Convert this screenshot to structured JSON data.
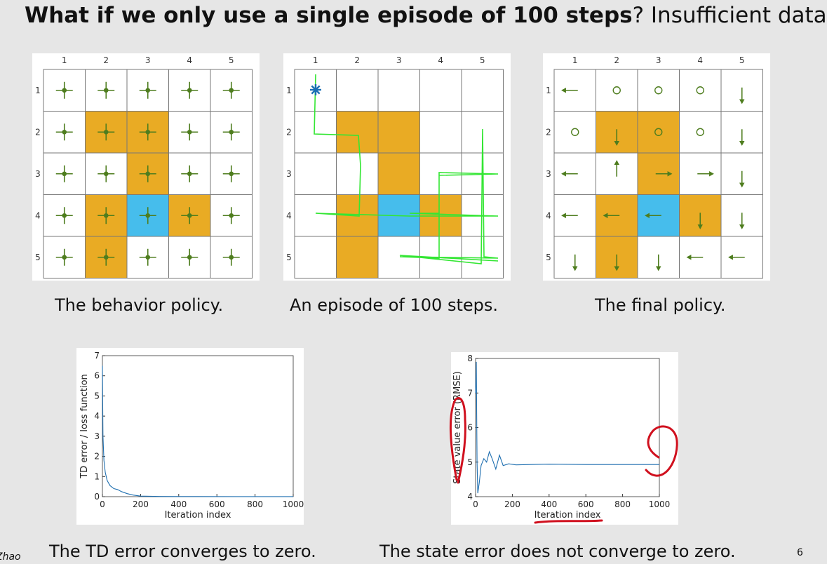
{
  "slide": {
    "title_bold": "What if we only use a single episode of 100 steps",
    "title_rest": "? Insufficient data",
    "footer_left": "Zhao",
    "page_number": "6"
  },
  "grid_labels": [
    "1",
    "2",
    "3",
    "4",
    "5"
  ],
  "cells": {
    "forbidden": [
      [
        2,
        2
      ],
      [
        2,
        3
      ],
      [
        3,
        3
      ],
      [
        4,
        2
      ],
      [
        4,
        4
      ],
      [
        5,
        2
      ]
    ],
    "target": [
      [
        4,
        3
      ]
    ],
    "colors": {
      "forbidden": "#e9ab24",
      "target": "#46bdec",
      "arrow": "#4e7d1e",
      "trajectory": "#33e633",
      "start": "#1a6fb4"
    }
  },
  "captions": {
    "behavior": "The behavior policy.",
    "episode": "An episode of 100 steps.",
    "final": "The final policy.",
    "td": "The TD error converges to zero.",
    "state": "The state error does not converge to zero."
  },
  "final_policy": [
    [
      "left",
      "stay",
      "stay",
      "stay",
      "down"
    ],
    [
      "stay",
      "down",
      "stay",
      "stay",
      "down"
    ],
    [
      "left",
      "up",
      "right",
      "right",
      "down"
    ],
    [
      "left",
      "left",
      "left",
      "down",
      "down"
    ],
    [
      "down",
      "down",
      "down",
      "left",
      "left"
    ]
  ],
  "chart_data": [
    {
      "type": "line",
      "xlabel": "Iteration index",
      "ylabel": "TD error / loss function",
      "xlim": [
        0,
        1000
      ],
      "ylim": [
        0,
        7
      ],
      "xticks": [
        "0",
        "200",
        "400",
        "600",
        "800",
        "1000"
      ],
      "yticks": [
        "0",
        "1",
        "2",
        "3",
        "4",
        "5",
        "6",
        "7"
      ],
      "series": [
        {
          "x": [
            0,
            3,
            8,
            15,
            25,
            40,
            60,
            80,
            100,
            130,
            160,
            200,
            300,
            500,
            700,
            1000
          ],
          "y": [
            6.5,
            3.0,
            1.8,
            1.2,
            0.8,
            0.55,
            0.4,
            0.35,
            0.25,
            0.15,
            0.08,
            0.03,
            0.01,
            0.005,
            0.003,
            0.002
          ]
        }
      ]
    },
    {
      "type": "line",
      "xlabel": "Iteration index",
      "ylabel": "State value error (RMSE)",
      "xlim": [
        0,
        1000
      ],
      "ylim": [
        4,
        8
      ],
      "xticks": [
        "0",
        "200",
        "400",
        "600",
        "800",
        "1000"
      ],
      "yticks": [
        "4",
        "5",
        "6",
        "7",
        "8"
      ],
      "series": [
        {
          "x": [
            0,
            4,
            8,
            12,
            20,
            30,
            45,
            60,
            75,
            90,
            110,
            130,
            150,
            180,
            220,
            300,
            400,
            600,
            800,
            1000
          ],
          "y": [
            7.0,
            7.9,
            5.0,
            4.1,
            4.4,
            4.9,
            5.1,
            5.0,
            5.3,
            5.1,
            4.8,
            5.2,
            4.9,
            4.95,
            4.92,
            4.93,
            4.94,
            4.93,
            4.93,
            4.93
          ]
        }
      ]
    }
  ]
}
